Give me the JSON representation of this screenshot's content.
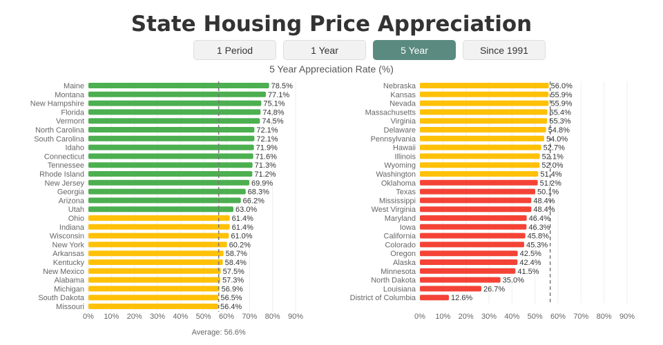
{
  "title": "State Housing Price Appreciation",
  "buttons": [
    {
      "label": "1 Period",
      "active": false
    },
    {
      "label": "1 Year",
      "active": false
    },
    {
      "label": "5 Year",
      "active": true
    },
    {
      "label": "Since 1991",
      "active": false
    }
  ],
  "colors": {
    "high": "#4caf50",
    "mid": "#ffc107",
    "low": "#f44336",
    "active_button": "#5a8a80",
    "average_line": "#777777"
  },
  "chart_data": {
    "type": "bar",
    "orientation": "horizontal",
    "title": "5 Year Appreciation Rate (%)",
    "xlim": [
      0,
      90
    ],
    "xticks": [
      "0%",
      "10%",
      "20%",
      "30%",
      "40%",
      "50%",
      "60%",
      "70%",
      "80%",
      "90%"
    ],
    "xtick_values": [
      0,
      10,
      20,
      30,
      40,
      50,
      60,
      70,
      80,
      90
    ],
    "grid": true,
    "average": {
      "value": 56.6,
      "label": "Average: 56.6%"
    },
    "categories": [
      "Maine",
      "Montana",
      "New Hampshire",
      "Florida",
      "Vermont",
      "North Carolina",
      "South Carolina",
      "Idaho",
      "Connecticut",
      "Tennessee",
      "Rhode Island",
      "New Jersey",
      "Georgia",
      "Arizona",
      "Utah",
      "Ohio",
      "Indiana",
      "Wisconsin",
      "New York",
      "Arkansas",
      "Kentucky",
      "New Mexico",
      "Alabama",
      "Michigan",
      "South Dakota",
      "Missouri",
      "Nebraska",
      "Kansas",
      "Nevada",
      "Massachusetts",
      "Virginia",
      "Delaware",
      "Pennsylvania",
      "Hawaii",
      "Illinois",
      "Wyoming",
      "Washington",
      "Oklahoma",
      "Texas",
      "Mississippi",
      "West Virginia",
      "Maryland",
      "Iowa",
      "California",
      "Colorado",
      "Oregon",
      "Alaska",
      "Minnesota",
      "North Dakota",
      "Louisiana",
      "District of Columbia"
    ],
    "values": [
      78.5,
      77.1,
      75.1,
      74.8,
      74.5,
      72.1,
      72.1,
      71.9,
      71.6,
      71.3,
      71.2,
      69.9,
      68.3,
      66.2,
      63.0,
      61.4,
      61.4,
      61.0,
      60.2,
      58.7,
      58.4,
      57.5,
      57.3,
      56.9,
      56.5,
      56.4,
      56.0,
      55.9,
      55.9,
      55.4,
      55.3,
      54.8,
      54.0,
      52.7,
      52.1,
      52.0,
      51.4,
      51.2,
      50.1,
      48.4,
      48.4,
      46.4,
      46.3,
      45.8,
      45.3,
      42.5,
      42.4,
      41.5,
      35.0,
      26.7,
      12.6
    ],
    "value_labels": [
      "78.5%",
      "77.1%",
      "75.1%",
      "74.8%",
      "74.5%",
      "72.1%",
      "72.1%",
      "71.9%",
      "71.6%",
      "71.3%",
      "71.2%",
      "69.9%",
      "68.3%",
      "66.2%",
      "63.0%",
      "61.4%",
      "61.4%",
      "61.0%",
      "60.2%",
      "58.7%",
      "58.4%",
      "57.5%",
      "57.3%",
      "56.9%",
      "56.5%",
      "56.4%",
      "56.0%",
      "55.9%",
      "55.9%",
      "55.4%",
      "55.3%",
      "54.8%",
      "54.0%",
      "52.7%",
      "52.1%",
      "52.0%",
      "51.4%",
      "51.2%",
      "50.1%",
      "48.4%",
      "48.4%",
      "46.4%",
      "46.3%",
      "45.8%",
      "45.3%",
      "42.5%",
      "42.4%",
      "41.5%",
      "35.0%",
      "26.7%",
      "12.6%"
    ],
    "groups": {
      "high_count": 15,
      "mid_count": 22,
      "low_count": 14
    }
  }
}
